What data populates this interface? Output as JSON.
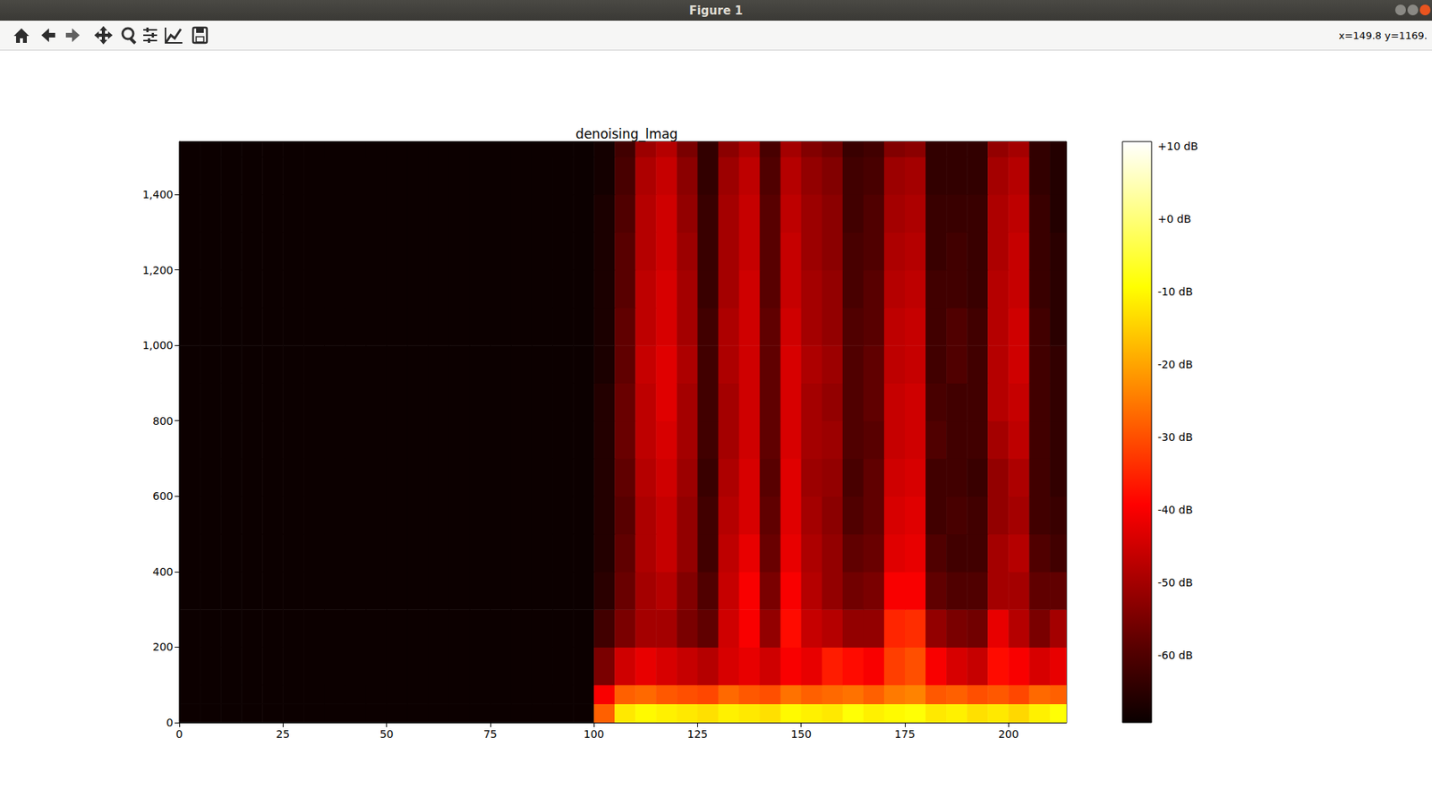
{
  "window": {
    "title": "Figure 1",
    "coordinates": "x=149.8 y=1169."
  },
  "chart_data": {
    "type": "heatmap",
    "title": "denoising_lmag",
    "xlim": [
      0,
      214
    ],
    "xticks": [
      0,
      25,
      50,
      75,
      100,
      125,
      150,
      175,
      200
    ],
    "ylim": [
      0,
      1540
    ],
    "yticks": [
      0,
      200,
      400,
      600,
      800,
      1000,
      1200,
      1400
    ],
    "x_edges": [
      0,
      5,
      10,
      15,
      20,
      25,
      30,
      35,
      40,
      45,
      50,
      55,
      60,
      65,
      70,
      75,
      80,
      85,
      90,
      95,
      100,
      105,
      110,
      115,
      120,
      125,
      130,
      135,
      140,
      145,
      150,
      155,
      160,
      165,
      170,
      175,
      180,
      185,
      190,
      195,
      200,
      205,
      210,
      214
    ],
    "y_edges": [
      0,
      50,
      100,
      200,
      300,
      400,
      500,
      600,
      700,
      800,
      900,
      1000,
      1100,
      1200,
      1300,
      1400,
      1500,
      1540
    ],
    "cells": [
      [
        -69,
        -69,
        -69,
        -69,
        -69,
        -69,
        -69,
        -69,
        -69,
        -69,
        -69,
        -69,
        -69,
        -69,
        -69,
        -69,
        -69,
        -69,
        -69,
        -69,
        -28,
        -12,
        -10,
        -11,
        -12,
        -13,
        -11,
        -12,
        -13,
        -10,
        -11,
        -12,
        -9,
        -11,
        -10,
        -9,
        -12,
        -11,
        -13,
        -12,
        -14,
        -11,
        -9
      ],
      [
        -69,
        -69,
        -69,
        -69,
        -69,
        -69,
        -69,
        -69,
        -69,
        -69,
        -69,
        -69,
        -69,
        -69,
        -69,
        -69,
        -69,
        -69,
        -69,
        -69,
        -40,
        -28,
        -27,
        -29,
        -30,
        -31,
        -27,
        -29,
        -30,
        -26,
        -28,
        -27,
        -26,
        -28,
        -25,
        -24,
        -29,
        -28,
        -30,
        -29,
        -31,
        -27,
        -28
      ],
      [
        -69,
        -69,
        -69,
        -69,
        -69,
        -69,
        -69,
        -69,
        -69,
        -69,
        -69,
        -69,
        -69,
        -69,
        -69,
        -69,
        -69,
        -69,
        -69,
        -69,
        -55,
        -45,
        -42,
        -44,
        -46,
        -48,
        -44,
        -42,
        -45,
        -40,
        -42,
        -36,
        -38,
        -40,
        -32,
        -30,
        -40,
        -44,
        -46,
        -38,
        -40,
        -44,
        -42
      ],
      [
        -69,
        -69,
        -69,
        -69,
        -69,
        -69,
        -69,
        -69,
        -69,
        -69,
        -69,
        -69,
        -69,
        -69,
        -69,
        -69,
        -69,
        -69,
        -69,
        -69,
        -62,
        -55,
        -50,
        -50,
        -55,
        -58,
        -45,
        -40,
        -52,
        -38,
        -46,
        -48,
        -52,
        -52,
        -35,
        -34,
        -52,
        -55,
        -56,
        -42,
        -48,
        -55,
        -50
      ],
      [
        -69,
        -69,
        -69,
        -69,
        -69,
        -69,
        -69,
        -69,
        -69,
        -69,
        -69,
        -69,
        -69,
        -69,
        -69,
        -69,
        -69,
        -69,
        -69,
        -69,
        -65,
        -57,
        -50,
        -48,
        -54,
        -60,
        -46,
        -40,
        -55,
        -40,
        -48,
        -52,
        -56,
        -55,
        -40,
        -40,
        -58,
        -60,
        -60,
        -50,
        -50,
        -58,
        -58
      ],
      [
        -69,
        -69,
        -69,
        -69,
        -69,
        -69,
        -69,
        -69,
        -69,
        -69,
        -69,
        -69,
        -69,
        -69,
        -69,
        -69,
        -69,
        -69,
        -69,
        -69,
        -66,
        -58,
        -49,
        -46,
        -52,
        -62,
        -47,
        -42,
        -57,
        -42,
        -49,
        -52,
        -58,
        -57,
        -43,
        -42,
        -60,
        -62,
        -62,
        -50,
        -48,
        -60,
        -62
      ],
      [
        -69,
        -69,
        -69,
        -69,
        -69,
        -69,
        -69,
        -69,
        -69,
        -69,
        -69,
        -69,
        -69,
        -69,
        -69,
        -69,
        -69,
        -69,
        -69,
        -69,
        -66,
        -59,
        -49,
        -46,
        -52,
        -62,
        -48,
        -44,
        -58,
        -43,
        -50,
        -53,
        -60,
        -58,
        -44,
        -43,
        -62,
        -61,
        -62,
        -52,
        -50,
        -62,
        -63
      ],
      [
        -69,
        -69,
        -69,
        -69,
        -69,
        -69,
        -69,
        -69,
        -69,
        -69,
        -69,
        -69,
        -69,
        -69,
        -69,
        -69,
        -69,
        -69,
        -69,
        -69,
        -66,
        -58,
        -48,
        -45,
        -51,
        -63,
        -49,
        -44,
        -59,
        -43,
        -51,
        -52,
        -61,
        -58,
        -45,
        -44,
        -62,
        -62,
        -63,
        -52,
        -49,
        -62,
        -64
      ],
      [
        -69,
        -69,
        -69,
        -69,
        -69,
        -69,
        -69,
        -69,
        -69,
        -69,
        -69,
        -69,
        -69,
        -69,
        -69,
        -69,
        -69,
        -69,
        -69,
        -69,
        -66,
        -57,
        -47,
        -44,
        -50,
        -62,
        -50,
        -45,
        -58,
        -44,
        -50,
        -51,
        -60,
        -59,
        -46,
        -45,
        -60,
        -62,
        -62,
        -50,
        -47,
        -62,
        -64
      ],
      [
        -69,
        -69,
        -69,
        -69,
        -69,
        -69,
        -69,
        -69,
        -69,
        -69,
        -69,
        -69,
        -69,
        -69,
        -69,
        -69,
        -69,
        -69,
        -69,
        -69,
        -66,
        -57,
        -47,
        -43,
        -50,
        -62,
        -50,
        -45,
        -58,
        -44,
        -50,
        -52,
        -60,
        -58,
        -46,
        -45,
        -61,
        -62,
        -62,
        -48,
        -46,
        -62,
        -64
      ],
      [
        -69,
        -69,
        -69,
        -69,
        -69,
        -69,
        -69,
        -69,
        -69,
        -69,
        -69,
        -69,
        -69,
        -69,
        -69,
        -69,
        -69,
        -69,
        -69,
        -69,
        -67,
        -58,
        -46,
        -43,
        -49,
        -62,
        -49,
        -45,
        -58,
        -44,
        -49,
        -51,
        -60,
        -58,
        -47,
        -46,
        -62,
        -60,
        -62,
        -48,
        -45,
        -62,
        -64
      ],
      [
        -69,
        -69,
        -69,
        -69,
        -69,
        -69,
        -69,
        -69,
        -69,
        -69,
        -69,
        -69,
        -69,
        -69,
        -69,
        -69,
        -69,
        -69,
        -69,
        -69,
        -67,
        -58,
        -47,
        -44,
        -50,
        -62,
        -49,
        -45,
        -58,
        -45,
        -50,
        -52,
        -60,
        -59,
        -47,
        -46,
        -62,
        -60,
        -62,
        -48,
        -45,
        -62,
        -65
      ],
      [
        -69,
        -69,
        -69,
        -69,
        -69,
        -69,
        -69,
        -69,
        -69,
        -69,
        -69,
        -69,
        -69,
        -69,
        -69,
        -69,
        -69,
        -69,
        -69,
        -69,
        -67,
        -59,
        -47,
        -44,
        -50,
        -63,
        -50,
        -45,
        -59,
        -46,
        -50,
        -52,
        -61,
        -59,
        -48,
        -47,
        -62,
        -62,
        -63,
        -48,
        -46,
        -63,
        -65
      ],
      [
        -69,
        -69,
        -69,
        -69,
        -69,
        -69,
        -69,
        -69,
        -69,
        -69,
        -69,
        -69,
        -69,
        -69,
        -69,
        -69,
        -69,
        -69,
        -69,
        -69,
        -67,
        -59,
        -48,
        -45,
        -51,
        -63,
        -50,
        -46,
        -59,
        -46,
        -51,
        -53,
        -61,
        -60,
        -49,
        -48,
        -63,
        -62,
        -63,
        -49,
        -46,
        -63,
        -65
      ],
      [
        -69,
        -69,
        -69,
        -69,
        -69,
        -69,
        -69,
        -69,
        -69,
        -69,
        -69,
        -69,
        -69,
        -69,
        -69,
        -69,
        -69,
        -69,
        -69,
        -69,
        -67,
        -60,
        -48,
        -45,
        -52,
        -63,
        -50,
        -46,
        -59,
        -47,
        -51,
        -53,
        -62,
        -60,
        -50,
        -49,
        -63,
        -63,
        -63,
        -49,
        -47,
        -63,
        -66
      ],
      [
        -69,
        -69,
        -69,
        -69,
        -69,
        -69,
        -69,
        -69,
        -69,
        -69,
        -69,
        -69,
        -69,
        -69,
        -69,
        -69,
        -69,
        -69,
        -69,
        -69,
        -68,
        -61,
        -49,
        -46,
        -53,
        -64,
        -51,
        -47,
        -60,
        -48,
        -52,
        -54,
        -62,
        -61,
        -51,
        -50,
        -64,
        -64,
        -64,
        -50,
        -48,
        -64,
        -66
      ],
      [
        -69,
        -69,
        -69,
        -69,
        -69,
        -69,
        -69,
        -69,
        -69,
        -69,
        -69,
        -69,
        -69,
        -69,
        -69,
        -69,
        -69,
        -69,
        -69,
        -69,
        -68,
        -62,
        -51,
        -48,
        -55,
        -64,
        -53,
        -49,
        -61,
        -50,
        -54,
        -56,
        -63,
        -62,
        -54,
        -53,
        -64,
        -64,
        -64,
        -52,
        -50,
        -64,
        -66
      ]
    ],
    "colorbar": {
      "range": [
        -69.3,
        10.6
      ],
      "ticks": [
        {
          "value": 10,
          "label": "+10 dB"
        },
        {
          "value": 0,
          "label": "+0 dB"
        },
        {
          "value": -10,
          "label": "-10 dB"
        },
        {
          "value": -20,
          "label": "-20 dB"
        },
        {
          "value": -30,
          "label": "-30 dB"
        },
        {
          "value": -40,
          "label": "-40 dB"
        },
        {
          "value": -50,
          "label": "-50 dB"
        },
        {
          "value": -60,
          "label": "-60 dB"
        }
      ]
    }
  }
}
